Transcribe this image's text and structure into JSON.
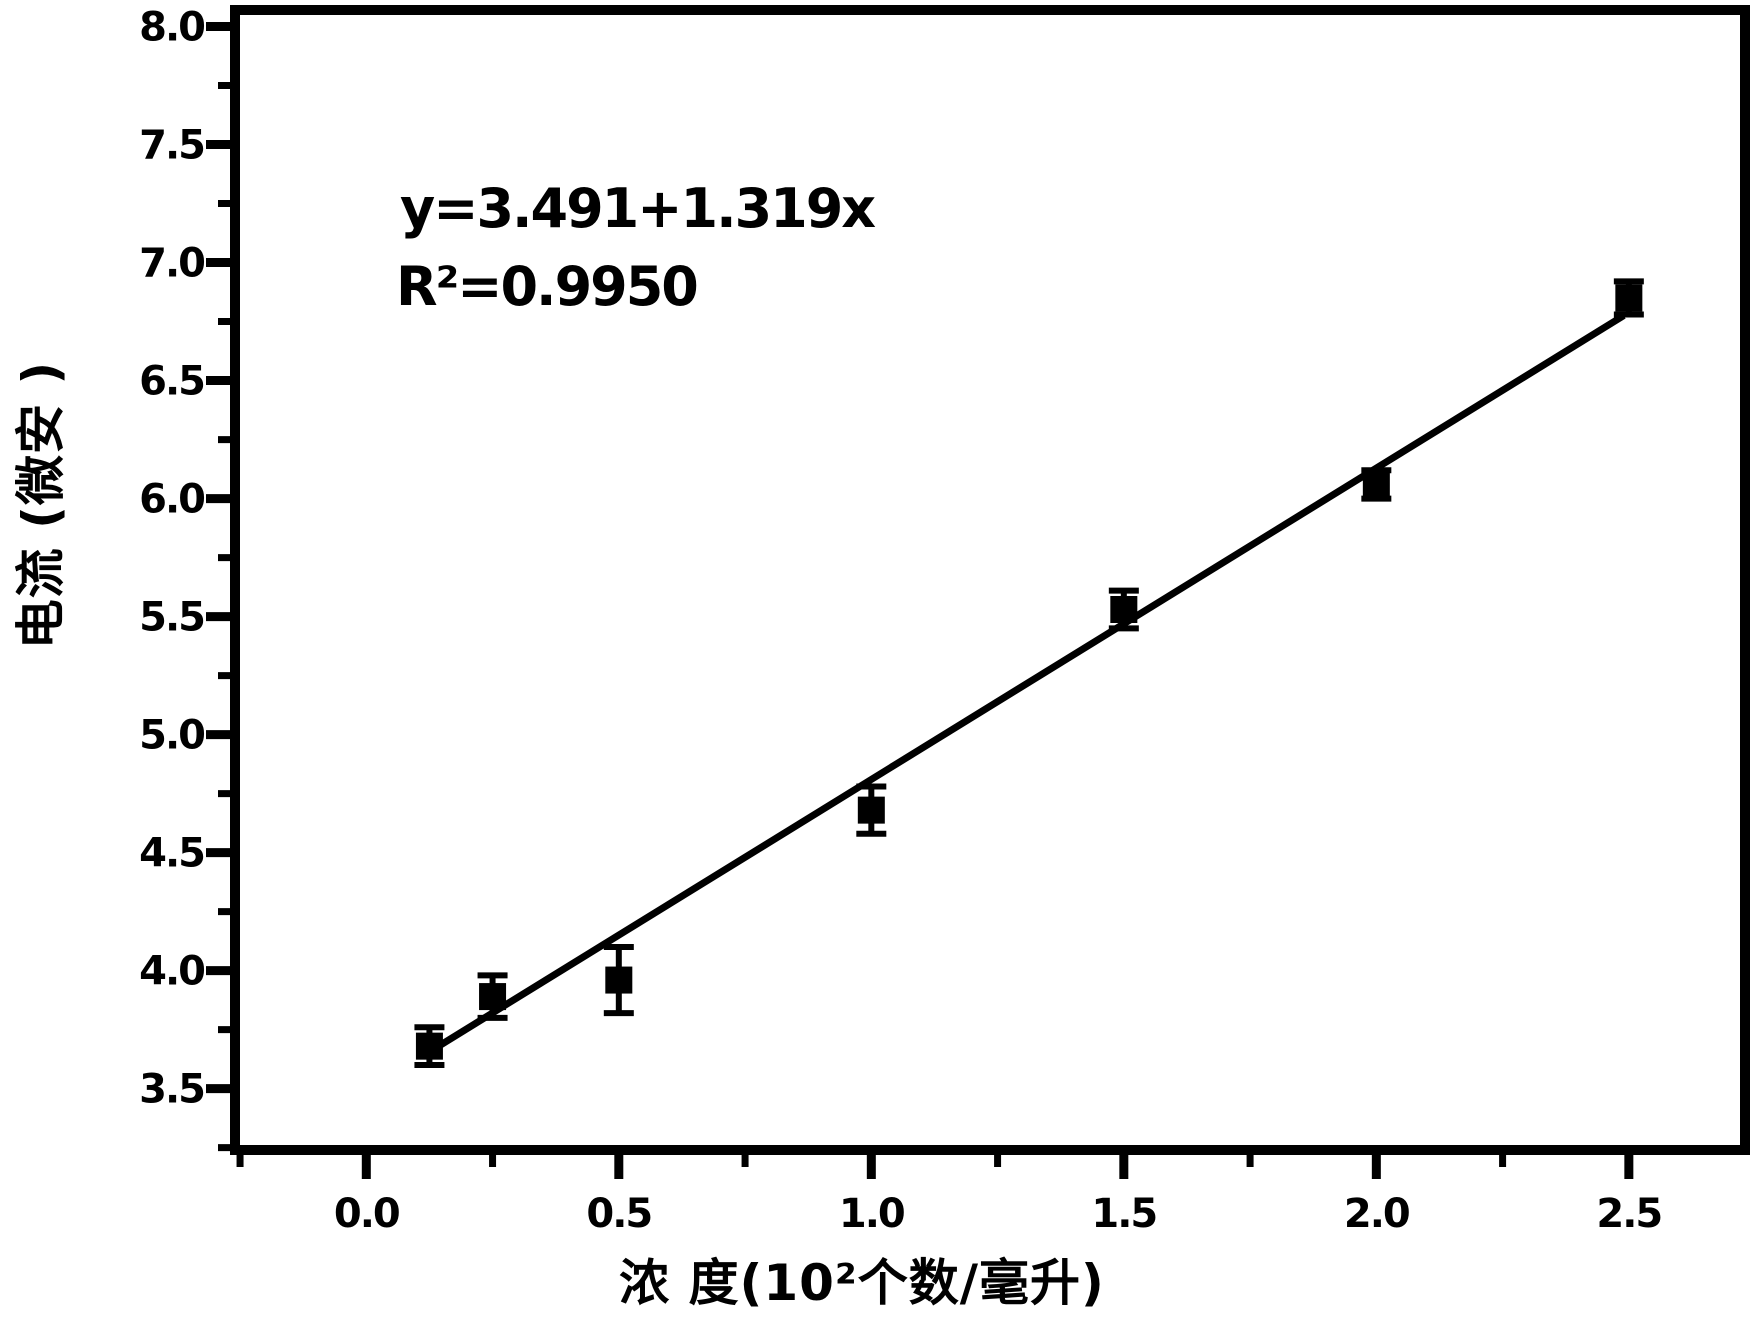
{
  "figure": {
    "background": "#ffffff",
    "ink": "#000000"
  },
  "chart_data": {
    "type": "scatter",
    "title": "",
    "xlabel": "浓 度(10²个数/毫升)",
    "ylabel": "电流 (微安 )",
    "annotation": {
      "equation": "y=3.491+1.319x",
      "r_squared": "R²=0.9950"
    },
    "x": [
      0.125,
      0.25,
      0.5,
      1.0,
      1.5,
      2.0,
      2.5
    ],
    "y": [
      3.68,
      3.89,
      3.96,
      4.68,
      5.53,
      6.06,
      6.85
    ],
    "y_err": [
      0.08,
      0.09,
      0.14,
      0.1,
      0.08,
      0.06,
      0.07
    ],
    "fit": {
      "intercept": 3.491,
      "slope": 1.319,
      "x_start": 0.125,
      "x_end": 2.49
    },
    "xlim": [
      -0.26,
      2.73
    ],
    "ylim": [
      3.24,
      8.07
    ],
    "x_major_ticks": [
      0.0,
      0.5,
      1.0,
      1.5,
      2.0,
      2.5
    ],
    "x_major_labels": [
      "0.0",
      "0.5",
      "1.0",
      "1.5",
      "2.0",
      "2.5"
    ],
    "x_minor_ticks": [
      -0.25,
      0.25,
      0.75,
      1.25,
      1.75,
      2.25
    ],
    "y_major_ticks": [
      3.5,
      4.0,
      4.5,
      5.0,
      5.5,
      6.0,
      6.5,
      7.0,
      7.5,
      8.0
    ],
    "y_major_labels": [
      "3.5",
      "4.0",
      "4.5",
      "5.0",
      "5.5",
      "6.0",
      "6.5",
      "7.0",
      "7.5",
      "8.0"
    ],
    "y_minor_ticks": [
      3.25,
      3.75,
      4.25,
      4.75,
      5.25,
      5.75,
      6.25,
      6.75,
      7.25,
      7.75
    ],
    "grid": false,
    "legend": null,
    "marker": "square",
    "colors": {
      "ink": "#000000",
      "background": "#ffffff"
    }
  }
}
